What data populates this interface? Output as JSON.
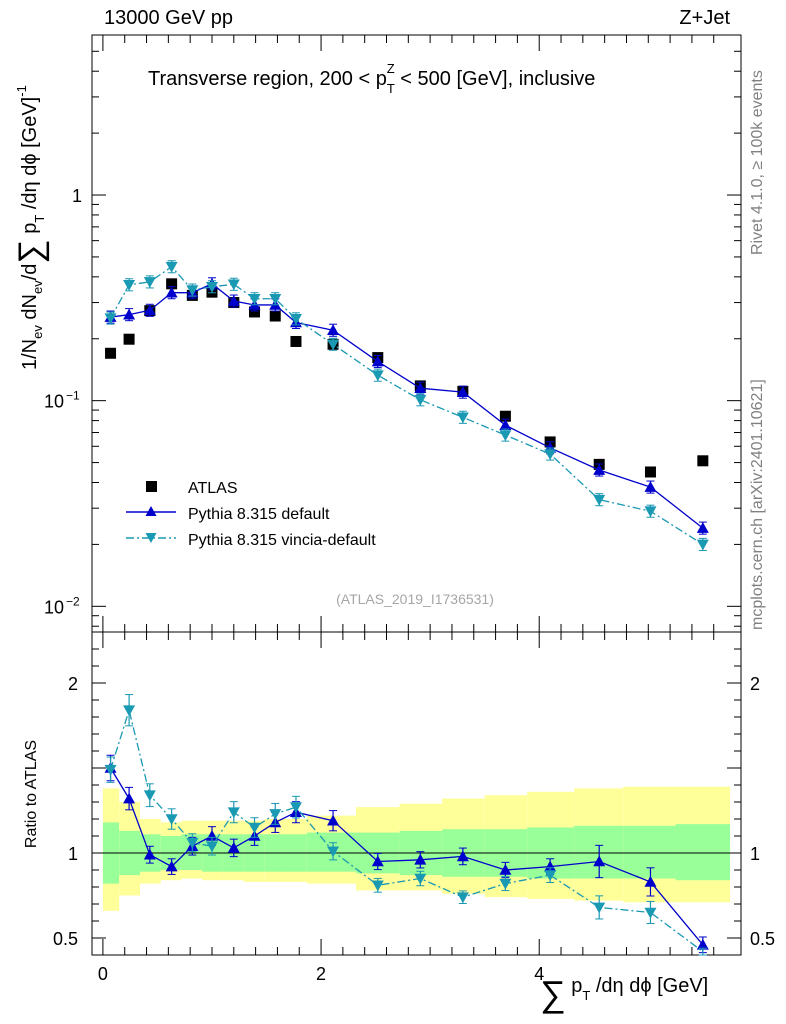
{
  "header": {
    "left": "13000 GeV pp",
    "right": "Z+Jet"
  },
  "side_labels": {
    "rivet": "Rivet 4.1.0, ≥ 100k events",
    "mcplots": "mcplots.cern.ch [arXiv:2401.10621]"
  },
  "colors": {
    "data": "#000000",
    "pythia": "#0000cc",
    "vincia": "#1a99b3",
    "band_inner": "#99ff99",
    "band_outer": "#ffff99"
  },
  "chart_data": [
    {
      "type": "scatter",
      "panel": "main",
      "title": "Transverse region, 200 < p_T^Z < 500 [GeV], inclusive",
      "ylabel": "1/N_ev dN_ev/d∑ p_T /dη dϕ  [GeV]^-1",
      "yscale": "log",
      "ylim": [
        0.0075,
        6.0
      ],
      "xlim": [
        -0.1,
        5.85
      ],
      "yticks": [
        {
          "value": 0.01,
          "label": "10",
          "exp": "−2"
        },
        {
          "value": 0.1,
          "label": "10",
          "exp": "−1"
        },
        {
          "value": 1,
          "label": "1",
          "exp": ""
        }
      ],
      "watermark": "(ATLAS_2019_I1736531)",
      "legend": [
        "ATLAS",
        "Pythia 8.315 default",
        "Pythia 8.315 vincia-default"
      ],
      "x": [
        0.07,
        0.24,
        0.43,
        0.63,
        0.82,
        1.0,
        1.2,
        1.39,
        1.58,
        1.77,
        2.11,
        2.52,
        2.91,
        3.3,
        3.69,
        4.1,
        4.55,
        5.02,
        5.5
      ],
      "series": [
        {
          "name": "ATLAS",
          "values": [
            0.17,
            0.199,
            0.274,
            0.37,
            0.325,
            0.337,
            0.3,
            0.27,
            0.258,
            0.194,
            0.188,
            0.162,
            0.118,
            0.111,
            0.084,
            0.063,
            0.049,
            0.045,
            0.051
          ]
        },
        {
          "name": "Pythia 8.315 default",
          "values": [
            0.255,
            0.262,
            0.275,
            0.335,
            0.335,
            0.37,
            0.305,
            0.292,
            0.292,
            0.24,
            0.22,
            0.155,
            0.115,
            0.11,
            0.076,
            0.059,
            0.046,
            0.038,
            0.024
          ]
        },
        {
          "name": "Pythia 8.315 vincia-default",
          "values": [
            0.252,
            0.366,
            0.378,
            0.448,
            0.345,
            0.358,
            0.368,
            0.313,
            0.313,
            0.25,
            0.188,
            0.133,
            0.101,
            0.083,
            0.068,
            0.055,
            0.033,
            0.029,
            0.02
          ]
        }
      ]
    },
    {
      "type": "scatter",
      "panel": "ratio",
      "ylabel": "Ratio to ATLAS",
      "xlabel": "∑ p_T /dη dϕ [GeV]",
      "ylim": [
        0.4,
        2.3
      ],
      "yticks": [
        0.5,
        1,
        2
      ],
      "xticks": [
        0,
        2,
        4
      ],
      "x": [
        0.07,
        0.24,
        0.43,
        0.63,
        0.82,
        1.0,
        1.2,
        1.39,
        1.58,
        1.77,
        2.11,
        2.52,
        2.91,
        3.3,
        3.69,
        4.1,
        4.55,
        5.02,
        5.5
      ],
      "series": [
        {
          "name": "Pythia 8.315 default",
          "values": [
            1.5,
            1.32,
            0.99,
            0.92,
            1.04,
            1.1,
            1.03,
            1.1,
            1.18,
            1.24,
            1.19,
            0.95,
            0.96,
            0.98,
            0.9,
            0.92,
            0.95,
            0.83,
            0.46
          ]
        },
        {
          "name": "Pythia 8.315 vincia-default",
          "values": [
            1.49,
            1.84,
            1.34,
            1.2,
            1.06,
            1.04,
            1.24,
            1.15,
            1.23,
            1.27,
            1.01,
            0.81,
            0.85,
            0.74,
            0.82,
            0.87,
            0.68,
            0.65,
            0.4
          ]
        }
      ],
      "band": {
        "edges": [
          0,
          0.15,
          0.34,
          0.53,
          0.72,
          0.91,
          1.1,
          1.29,
          1.48,
          1.67,
          1.87,
          2.32,
          2.72,
          3.11,
          3.5,
          3.89,
          4.32,
          4.77,
          5.25,
          5.75
        ],
        "inner_lo": [
          0.82,
          0.87,
          0.89,
          0.9,
          0.9,
          0.89,
          0.89,
          0.89,
          0.89,
          0.89,
          0.89,
          0.88,
          0.87,
          0.86,
          0.86,
          0.85,
          0.85,
          0.85,
          0.84
        ],
        "inner_hi": [
          1.18,
          1.13,
          1.11,
          1.1,
          1.11,
          1.11,
          1.11,
          1.11,
          1.11,
          1.11,
          1.12,
          1.12,
          1.13,
          1.14,
          1.14,
          1.15,
          1.16,
          1.16,
          1.17
        ],
        "outer_lo": [
          0.66,
          0.75,
          0.82,
          0.84,
          0.85,
          0.84,
          0.84,
          0.83,
          0.83,
          0.83,
          0.82,
          0.78,
          0.78,
          0.76,
          0.74,
          0.73,
          0.72,
          0.71,
          0.71
        ],
        "outer_hi": [
          1.38,
          1.3,
          1.2,
          1.18,
          1.19,
          1.19,
          1.19,
          1.19,
          1.2,
          1.2,
          1.22,
          1.27,
          1.29,
          1.32,
          1.34,
          1.36,
          1.38,
          1.39,
          1.39
        ]
      }
    }
  ]
}
